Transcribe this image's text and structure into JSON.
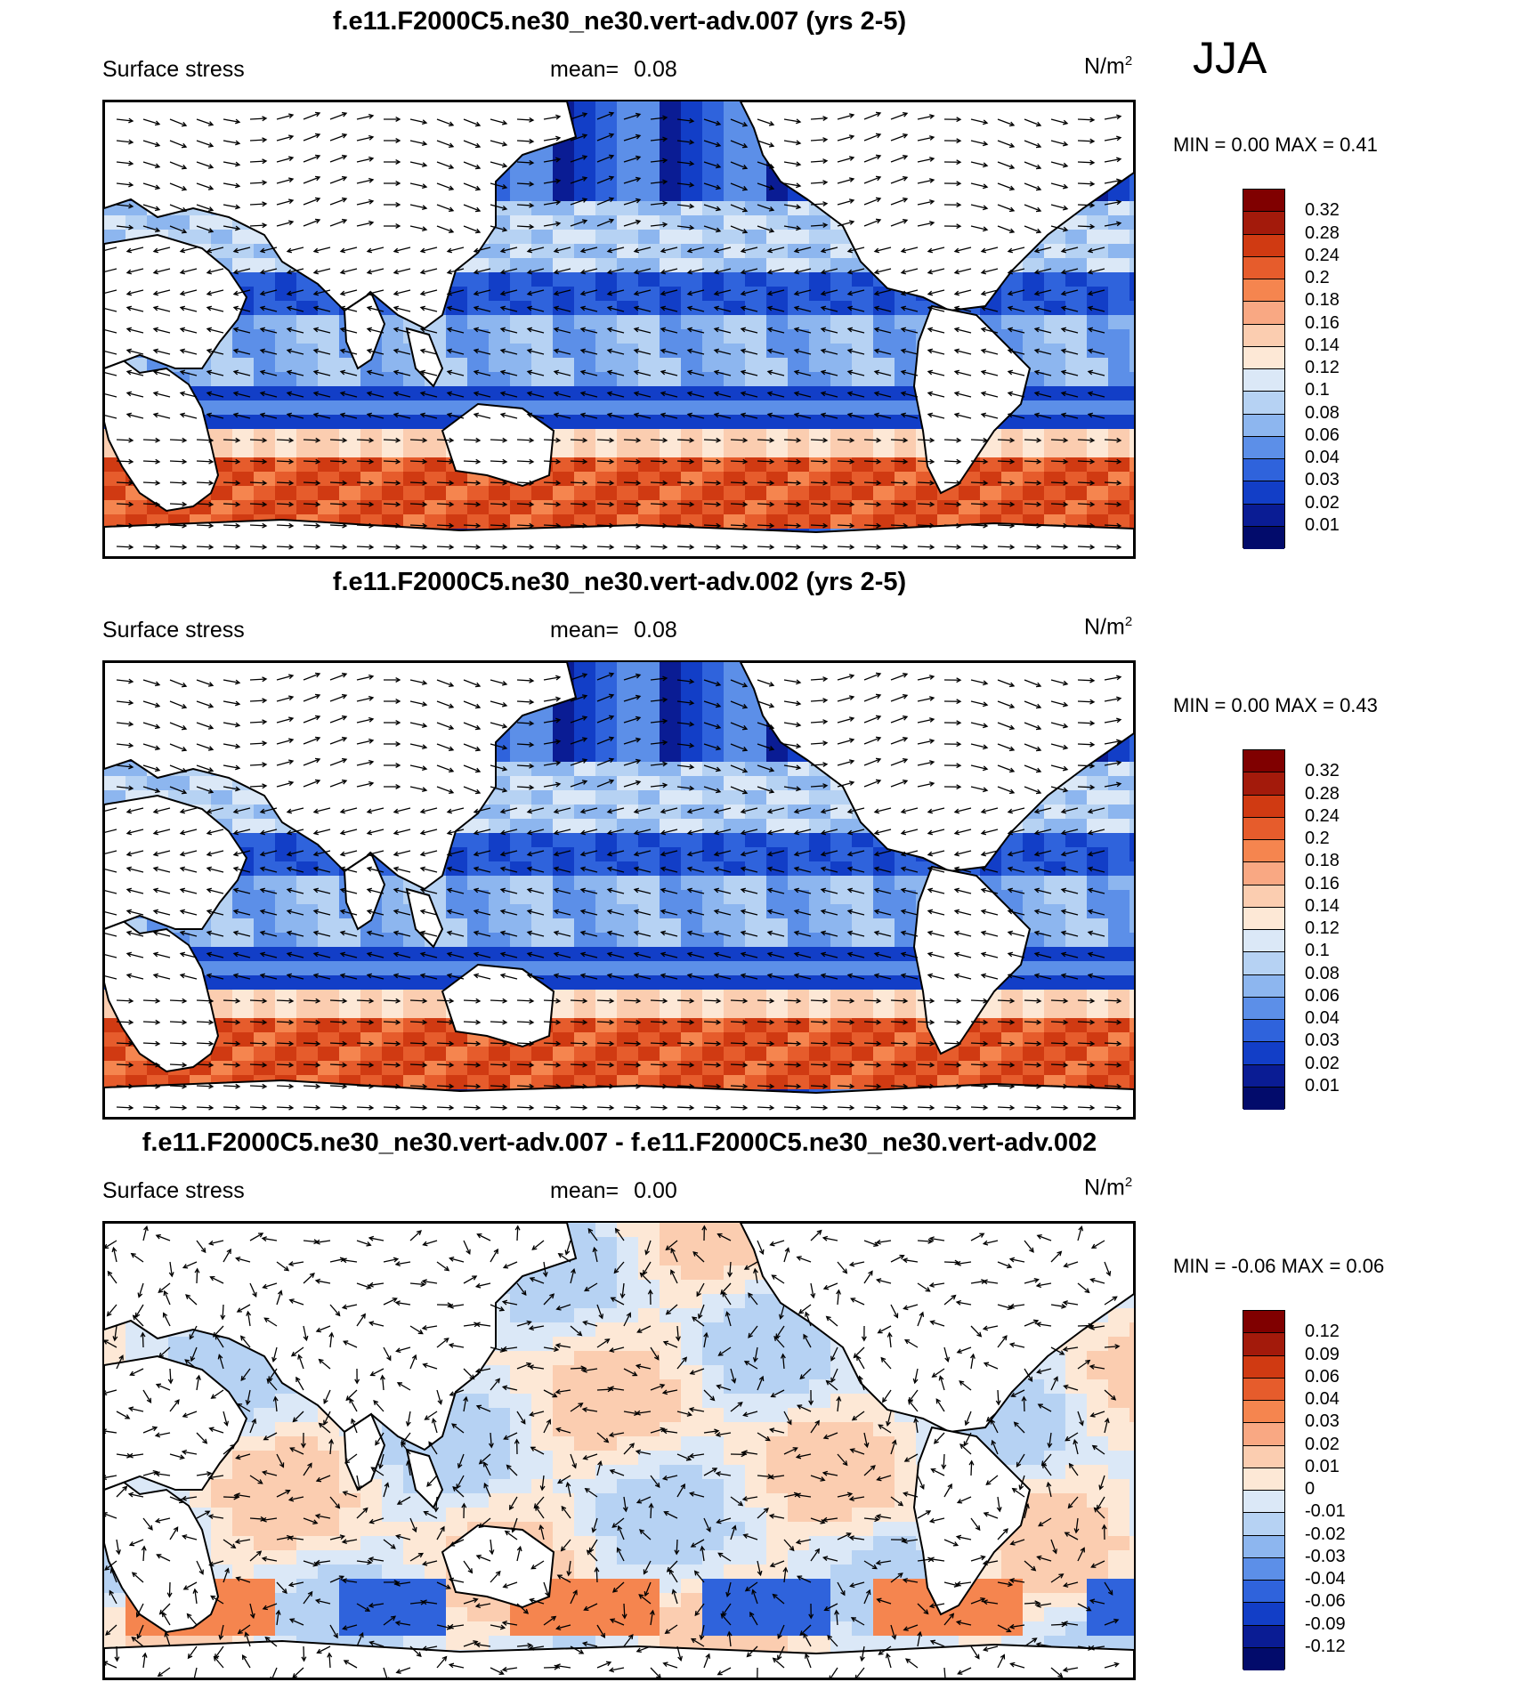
{
  "season": "JJA",
  "panels": [
    {
      "title": "f.e11.F2000C5.ne30_ne30.vert-adv.007 (yrs 2-5)",
      "left_label": "Surface stress",
      "mean_label": "mean=",
      "mean_value": "0.08",
      "units": "N/m",
      "units_sup": "2",
      "minmax": "MIN =    0.00 MAX =   0.41",
      "colorbar": [
        "0.32",
        "0.28",
        "0.24",
        "0.2",
        "0.18",
        "0.16",
        "0.14",
        "0.12",
        "0.1",
        "0.08",
        "0.06",
        "0.04",
        "0.03",
        "0.02",
        "0.01"
      ]
    },
    {
      "title": "f.e11.F2000C5.ne30_ne30.vert-adv.002 (yrs 2-5)",
      "left_label": "Surface stress",
      "mean_label": "mean=",
      "mean_value": "0.08",
      "units": "N/m",
      "units_sup": "2",
      "minmax": "MIN =    0.00 MAX =   0.43",
      "colorbar": [
        "0.32",
        "0.28",
        "0.24",
        "0.2",
        "0.18",
        "0.16",
        "0.14",
        "0.12",
        "0.1",
        "0.08",
        "0.06",
        "0.04",
        "0.03",
        "0.02",
        "0.01"
      ]
    },
    {
      "title": "f.e11.F2000C5.ne30_ne30.vert-adv.007 - f.e11.F2000C5.ne30_ne30.vert-adv.002",
      "left_label": "Surface stress",
      "mean_label": "mean=",
      "mean_value": "0.00",
      "units": "N/m",
      "units_sup": "2",
      "minmax": "MIN =  -0.06 MAX =   0.06",
      "colorbar": [
        "0.12",
        "0.09",
        "0.06",
        "0.04",
        "0.03",
        "0.02",
        "0.01",
        "0",
        "-0.01",
        "-0.02",
        "-0.03",
        "-0.04",
        "-0.06",
        "-0.09",
        "-0.12"
      ]
    }
  ],
  "colors": {
    "full_field": [
      "#800000",
      "#a31a0b",
      "#d03a12",
      "#e65c2c",
      "#f5854f",
      "#f9a883",
      "#fbcdb0",
      "#fde8d6",
      "#dbe8f7",
      "#b6d2f3",
      "#8db6ef",
      "#5c8fe8",
      "#2f63dc",
      "#123ec7",
      "#0a1c94",
      "#020b6b"
    ],
    "difference": [
      "#800000",
      "#a31a0b",
      "#d03a12",
      "#e65c2c",
      "#f5854f",
      "#f9a883",
      "#fbcdb0",
      "#fde8d6",
      "#dbe8f7",
      "#b6d2f3",
      "#8db6ef",
      "#5c8fe8",
      "#2f63dc",
      "#123ec7",
      "#0a1c94",
      "#020b6b"
    ],
    "land": "#ffffff",
    "coast": "#000000"
  }
}
